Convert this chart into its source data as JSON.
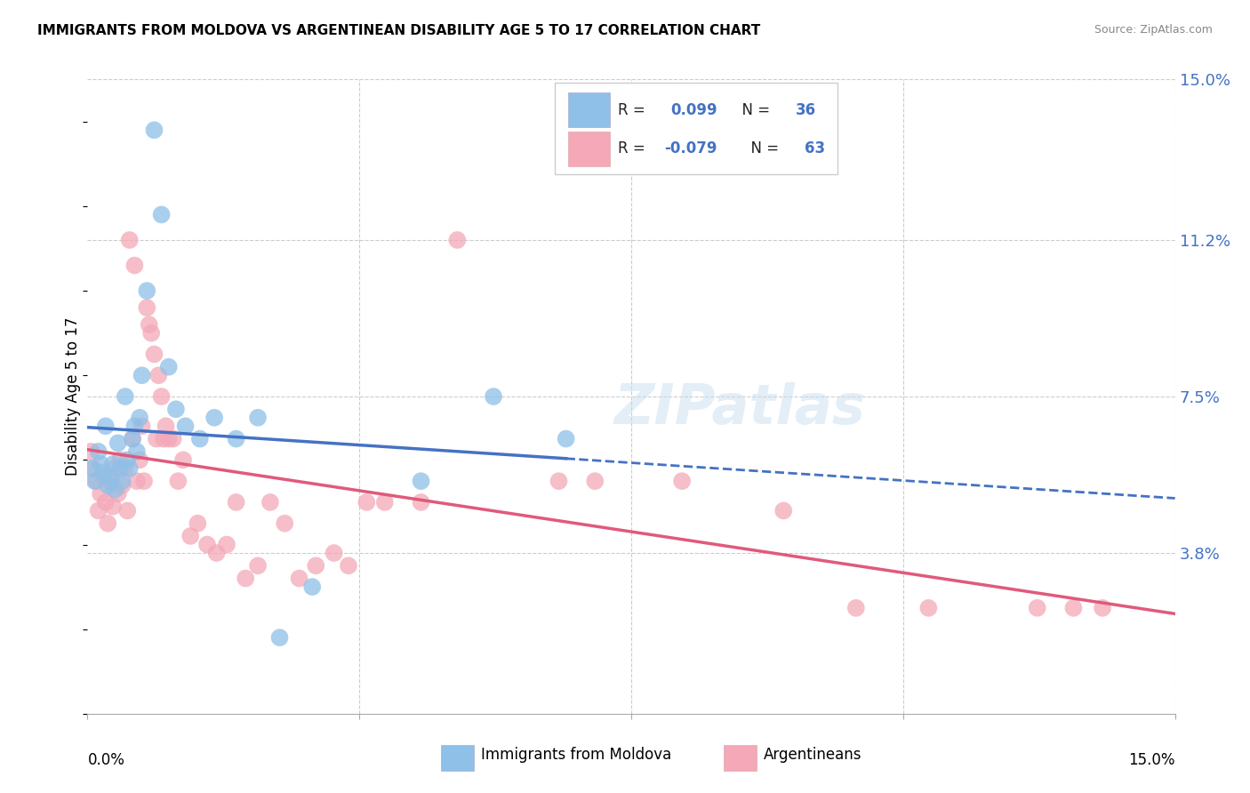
{
  "title": "IMMIGRANTS FROM MOLDOVA VS ARGENTINEAN DISABILITY AGE 5 TO 17 CORRELATION CHART",
  "source": "Source: ZipAtlas.com",
  "ylabel": "Disability Age 5 to 17",
  "y_ticks": [
    3.8,
    7.5,
    11.2,
    15.0
  ],
  "y_tick_labels": [
    "3.8%",
    "7.5%",
    "11.2%",
    "15.0%"
  ],
  "xlim": [
    0.0,
    15.0
  ],
  "ylim": [
    0.0,
    15.0
  ],
  "color_moldova": "#8ec0e8",
  "color_argentina": "#f4a8b8",
  "color_line_moldova": "#4472c4",
  "color_line_argentina": "#e05a7a",
  "color_dash": "#8ec0e8",
  "moldova_x": [
    0.05,
    0.1,
    0.15,
    0.18,
    0.22,
    0.25,
    0.28,
    0.32,
    0.35,
    0.38,
    0.42,
    0.45,
    0.48,
    0.52,
    0.55,
    0.58,
    0.62,
    0.65,
    0.68,
    0.72,
    0.75,
    0.82,
    0.92,
    1.02,
    1.12,
    1.22,
    1.35,
    1.55,
    1.75,
    2.05,
    2.35,
    2.65,
    3.1,
    4.6,
    5.6,
    6.6
  ],
  "moldova_y": [
    5.8,
    5.5,
    6.2,
    5.9,
    5.7,
    6.8,
    5.4,
    5.6,
    5.9,
    5.3,
    6.4,
    5.8,
    5.5,
    7.5,
    6.0,
    5.8,
    6.5,
    6.8,
    6.2,
    7.0,
    8.0,
    10.0,
    13.8,
    11.8,
    8.2,
    7.2,
    6.8,
    6.5,
    7.0,
    6.5,
    7.0,
    1.8,
    3.0,
    5.5,
    7.5,
    6.5
  ],
  "argentina_x": [
    0.05,
    0.08,
    0.12,
    0.15,
    0.18,
    0.22,
    0.25,
    0.28,
    0.32,
    0.35,
    0.38,
    0.42,
    0.45,
    0.48,
    0.52,
    0.55,
    0.58,
    0.62,
    0.65,
    0.68,
    0.72,
    0.75,
    0.78,
    0.82,
    0.85,
    0.88,
    0.92,
    0.95,
    0.98,
    1.02,
    1.05,
    1.08,
    1.12,
    1.18,
    1.25,
    1.32,
    1.42,
    1.52,
    1.65,
    1.78,
    1.92,
    2.05,
    2.18,
    2.35,
    2.52,
    2.72,
    2.92,
    3.15,
    3.4,
    3.6,
    3.85,
    4.1,
    4.6,
    5.1,
    6.5,
    7.0,
    8.2,
    9.6,
    10.6,
    11.6,
    13.1,
    13.6,
    14.0
  ],
  "argentina_y": [
    6.2,
    5.8,
    5.5,
    4.8,
    5.2,
    5.6,
    5.0,
    4.5,
    5.5,
    4.9,
    5.8,
    5.2,
    6.0,
    5.4,
    5.8,
    4.8,
    11.2,
    6.5,
    10.6,
    5.5,
    6.0,
    6.8,
    5.5,
    9.6,
    9.2,
    9.0,
    8.5,
    6.5,
    8.0,
    7.5,
    6.5,
    6.8,
    6.5,
    6.5,
    5.5,
    6.0,
    4.2,
    4.5,
    4.0,
    3.8,
    4.0,
    5.0,
    3.2,
    3.5,
    5.0,
    4.5,
    3.2,
    3.5,
    3.8,
    3.5,
    5.0,
    5.0,
    5.0,
    11.2,
    5.5,
    5.5,
    5.5,
    4.8,
    2.5,
    2.5,
    2.5,
    2.5,
    2.5
  ]
}
